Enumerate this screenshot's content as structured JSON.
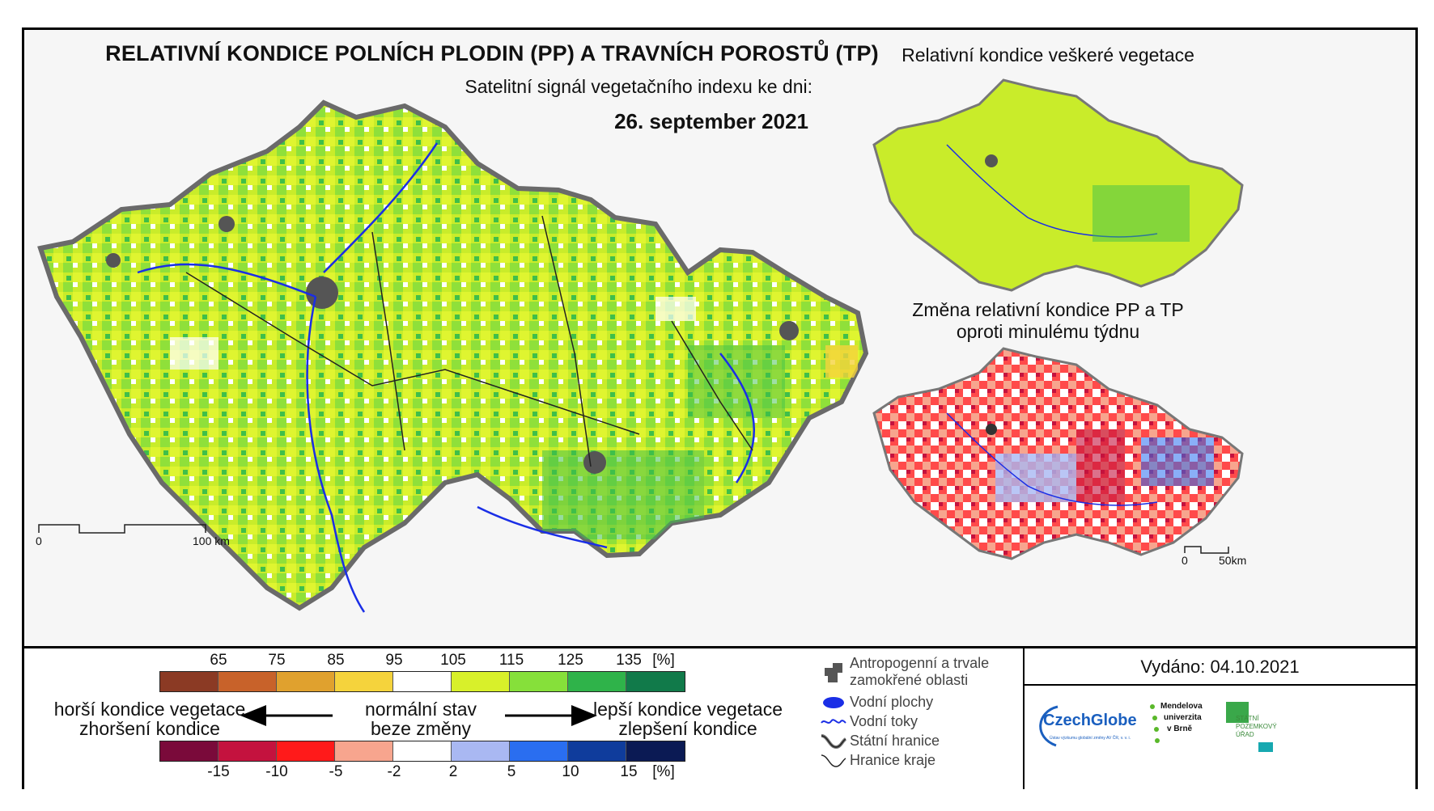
{
  "main_map": {
    "title": "RELATIVNÍ KONDICE POLNÍCH PLODIN (PP) A TRAVNÍCH POROSTŮ (TP)",
    "subtitle": "Satelitní signál vegetačního indexu ke dni:",
    "date": "26. september 2021",
    "scale_start": "0",
    "scale_end": "100 km"
  },
  "inset_top": {
    "title": "Relativní kondice veškeré vegetace"
  },
  "inset_bottom": {
    "title_line1": "Změna relativní kondice PP a TP",
    "title_line2": "oproti minulému týdnu",
    "scale_start": "0",
    "scale_end": "50km"
  },
  "condition_scale": {
    "ticks": [
      "65",
      "75",
      "85",
      "95",
      "105",
      "115",
      "125",
      "135"
    ],
    "unit": "[%]",
    "colors": [
      "#8b3a24",
      "#c8622a",
      "#e0a12e",
      "#f5d33c",
      "#ffffff",
      "#d8f02a",
      "#86e03a",
      "#2fb34a",
      "#117a4a"
    ]
  },
  "change_scale": {
    "ticks": [
      "-15",
      "-10",
      "-5",
      "-2",
      "2",
      "5",
      "10",
      "15"
    ],
    "unit": "[%]",
    "colors": [
      "#7a0a3a",
      "#c4123e",
      "#ff1a1a",
      "#f7a58e",
      "#ffffff",
      "#a9b8f2",
      "#2a6ef0",
      "#0f3c9c",
      "#0b1a54"
    ]
  },
  "arrows": {
    "left_line1": "horší kondice vegetace",
    "left_line2": "zhoršení kondice",
    "center_line1": "normální stav",
    "center_line2": "beze změny",
    "right_line1": "lepší kondice vegetace",
    "right_line2": "zlepšení kondice"
  },
  "map_legend": {
    "items": [
      {
        "label": "Antropogenní a trvale zamokřené oblasti",
        "icon": "urban-area-icon",
        "color": "#555555"
      },
      {
        "label": "Vodní plochy",
        "icon": "water-body-icon",
        "color": "#1a2ee6"
      },
      {
        "label": "Vodní toky",
        "icon": "river-icon",
        "color": "#1a2ee6"
      },
      {
        "label": "Státní hranice",
        "icon": "state-border-icon",
        "color": "#222222"
      },
      {
        "label": "Hranice kraje",
        "icon": "region-border-icon",
        "color": "#222222"
      }
    ]
  },
  "issued": {
    "label": "Vydáno: 04.10.2021"
  },
  "logos": {
    "czechglobe": "CzechGlobe",
    "czechglobe_sub": "Ústav výzkumu globální změny AV ČR, v. v. i.",
    "mendel_1": "Mendelova",
    "mendel_2": "univerzita",
    "mendel_3": "v Brně",
    "spu_1": "STÁTNÍ",
    "spu_2": "POZEMKOVÝ",
    "spu_3": "ÚŘAD"
  }
}
